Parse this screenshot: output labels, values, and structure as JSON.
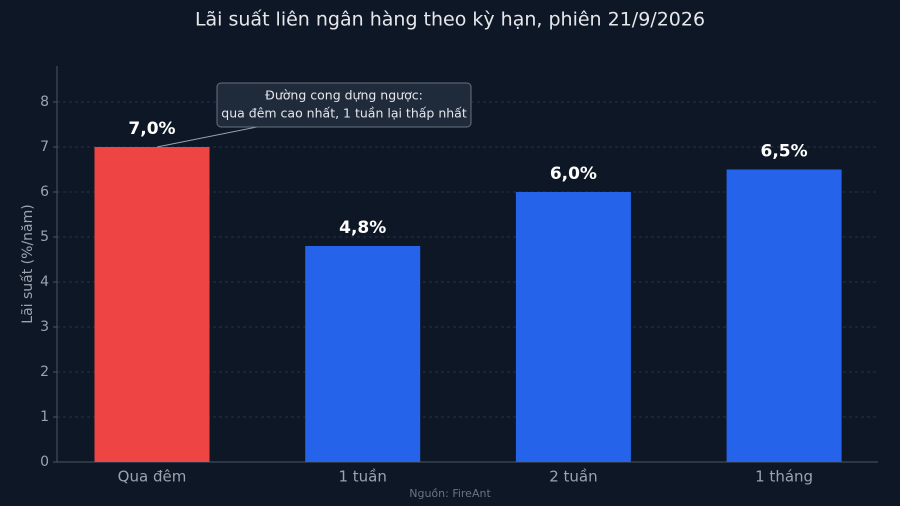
{
  "chart_data": {
    "type": "bar",
    "title": "Lãi suất liên ngân hàng theo kỳ hạn, phiên 21/9/2026",
    "y_label": "Lãi suất (%/năm)",
    "categories": [
      "Qua đêm",
      "1 tuần",
      "2 tuần",
      "1 tháng"
    ],
    "values": [
      7.0,
      4.8,
      6.0,
      6.5
    ],
    "value_labels": [
      "7,0%",
      "4,8%",
      "6,0%",
      "6,5%"
    ],
    "colors": [
      "#ef4444",
      "#2563eb",
      "#2563eb",
      "#2563eb"
    ],
    "ylim": [
      0,
      8.8
    ],
    "yticks": [
      0,
      1,
      2,
      3,
      4,
      5,
      6,
      7,
      8
    ],
    "grid": true,
    "annotation": {
      "lines": [
        "Đường cong dựng ngược:",
        "qua đêm cao nhất, 1 tuần lại thấp nhất"
      ],
      "target": 0
    },
    "source": "Nguồn: FireAnt"
  }
}
